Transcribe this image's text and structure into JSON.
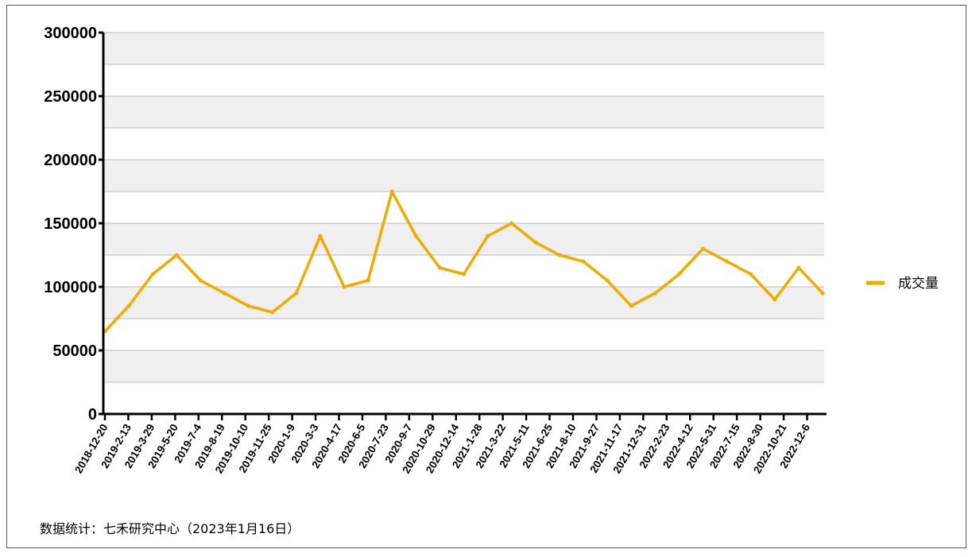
{
  "source_note": "数据统计：七禾研究中心（2023年1月16日）",
  "colors": {
    "series": "#F2A900",
    "band": "#EFEFEF",
    "grid": "#BBBBBB",
    "axis": "#000000"
  },
  "chart_data": {
    "type": "line",
    "title": "",
    "xlabel": "",
    "ylabel": "",
    "ylim": [
      0,
      300000
    ],
    "y_ticks": [
      "0",
      "50000",
      "100000",
      "150000",
      "200000",
      "250000",
      "300000"
    ],
    "x_tick_labels": [
      "2018-12-20",
      "2019-2-13",
      "2019-3-29",
      "2019-5-20",
      "2019-7-4",
      "2019-8-19",
      "2019-10-10",
      "2019-11-25",
      "2020-1-9",
      "2020-3-3",
      "2020-4-17",
      "2020-6-5",
      "2020-7-23",
      "2020-9-7",
      "2020-10-29",
      "2020-12-14",
      "2021-1-28",
      "2021-3-22",
      "2021-5-11",
      "2021-6-25",
      "2021-8-10",
      "2021-9-27",
      "2021-11-17",
      "2021-12-31",
      "2022-2-23",
      "2022-4-12",
      "2022-5-31",
      "2022-7-15",
      "2022-8-30",
      "2022-10-21",
      "2022-12-6"
    ],
    "legend": {
      "position": "right",
      "entries": [
        "成交量"
      ]
    },
    "grid": true,
    "series": [
      {
        "name": "成交量",
        "color": "#F2A900",
        "x": [
          "2018-12-20",
          "2019-2-13",
          "2019-3-29",
          "2019-5-20",
          "2019-7-4",
          "2019-8-19",
          "2019-10-10",
          "2019-11-25",
          "2020-1-9",
          "2020-3-3",
          "2020-4-17",
          "2020-6-5",
          "2020-7-23",
          "2020-9-7",
          "2020-10-29",
          "2020-12-14",
          "2021-1-28",
          "2021-3-22",
          "2021-5-11",
          "2021-6-25",
          "2021-8-10",
          "2021-9-27",
          "2021-11-17",
          "2021-12-31",
          "2022-2-23",
          "2022-4-12",
          "2022-5-31",
          "2022-7-15",
          "2022-8-30",
          "2022-10-21",
          "2022-12-6"
        ],
        "values": [
          65000,
          85000,
          110000,
          125000,
          105000,
          95000,
          85000,
          80000,
          95000,
          140000,
          100000,
          105000,
          175000,
          140000,
          115000,
          110000,
          140000,
          150000,
          135000,
          125000,
          120000,
          105000,
          85000,
          95000,
          110000,
          130000,
          120000,
          110000,
          90000,
          115000,
          95000
        ]
      }
    ]
  }
}
